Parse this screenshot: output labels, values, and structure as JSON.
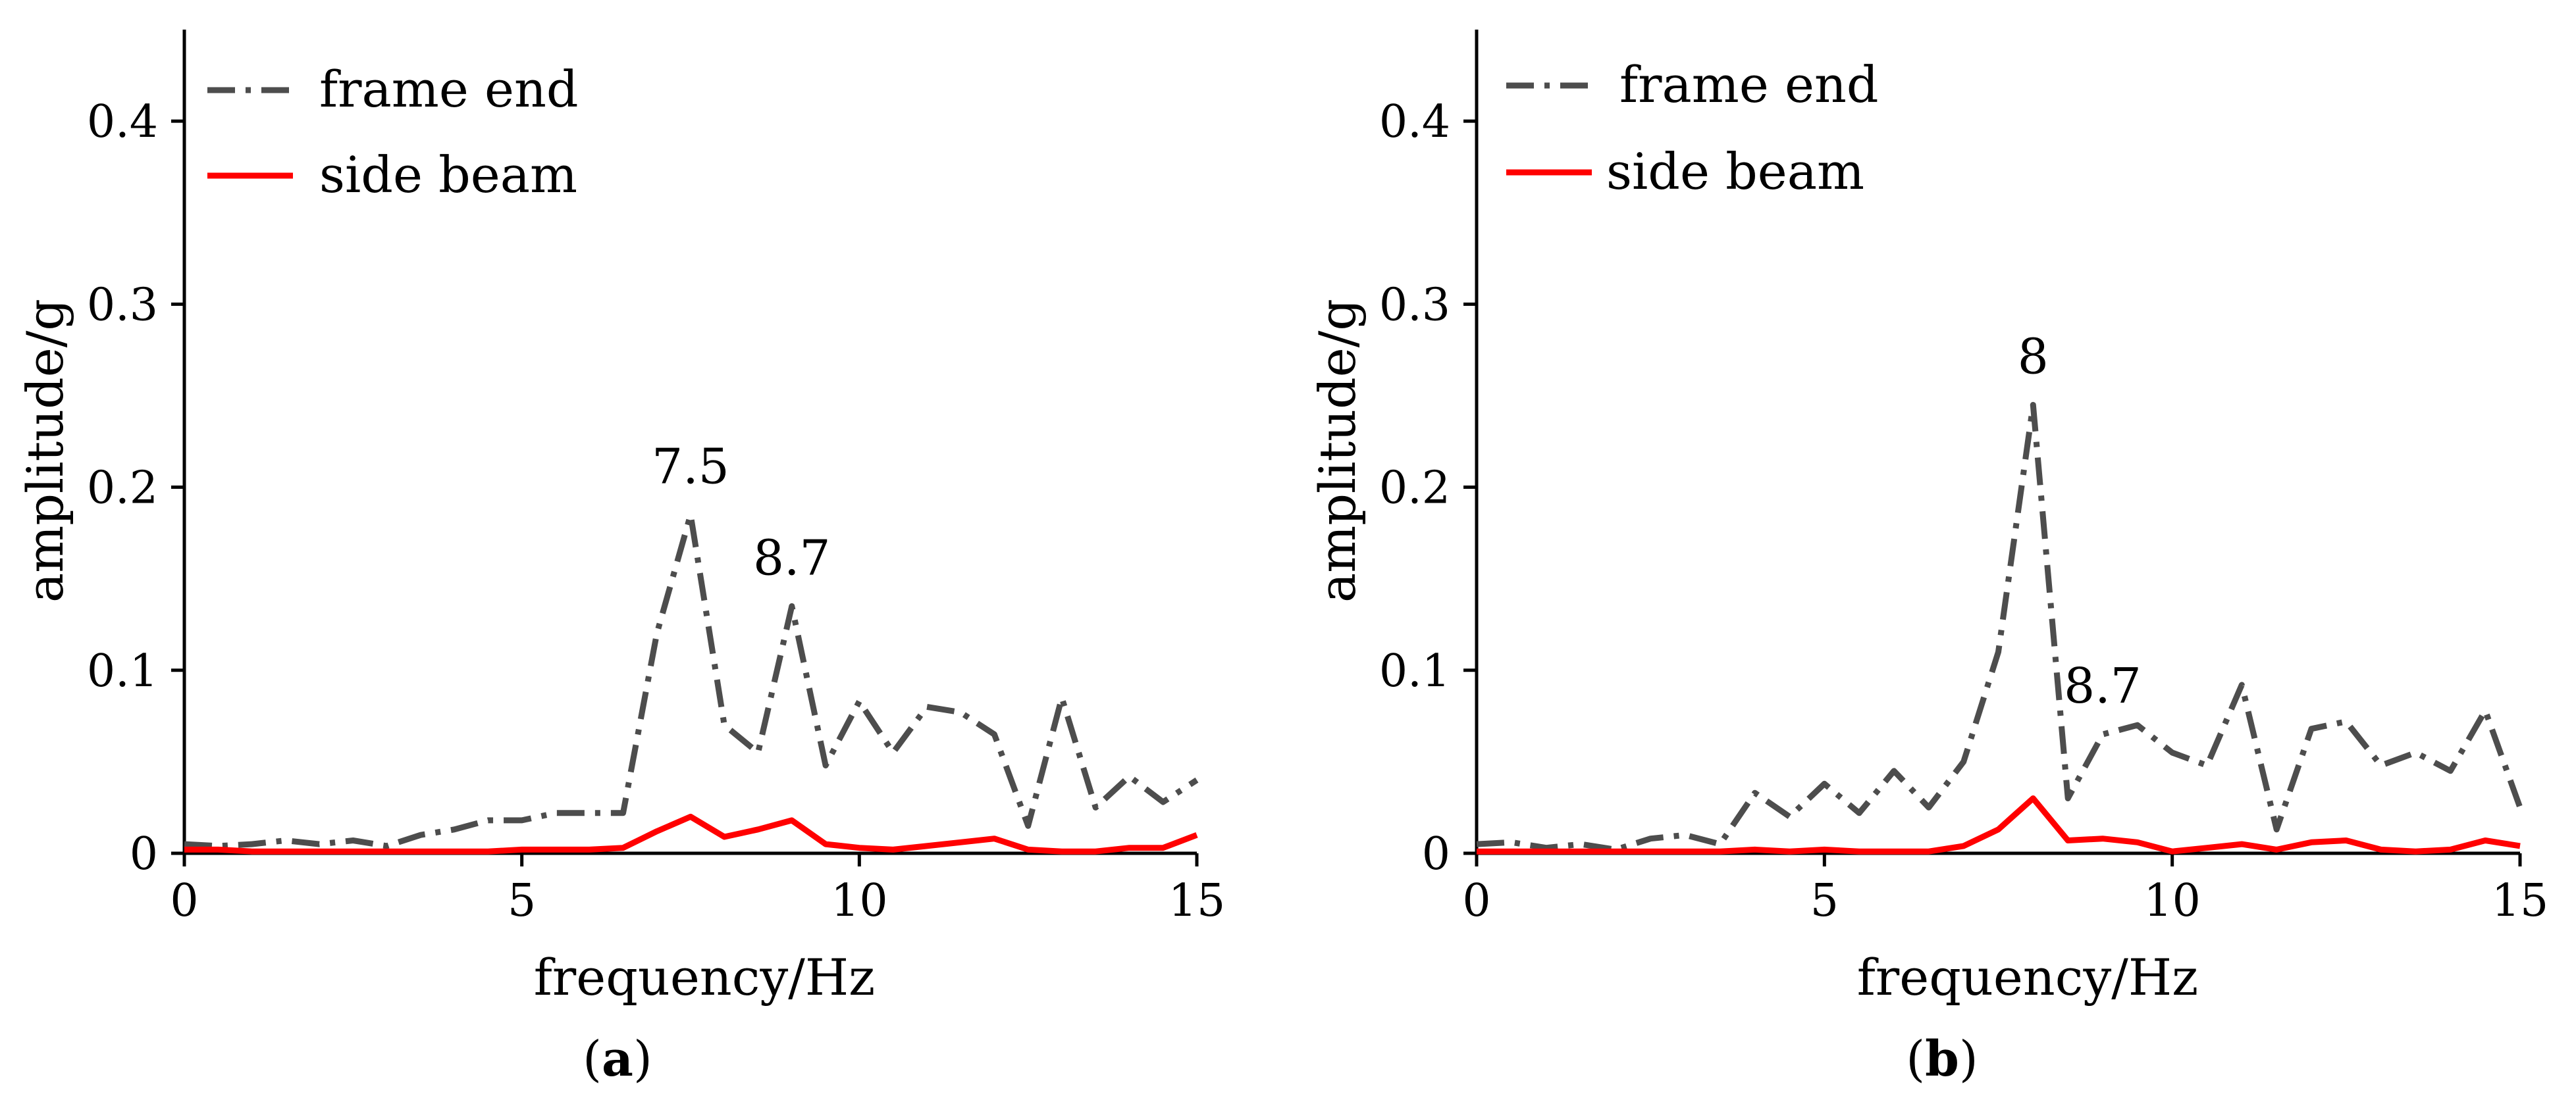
{
  "panels": [
    {
      "caption": "a",
      "chart_data": {
        "type": "line",
        "xlabel": "frequency/Hz",
        "ylabel": "amplitude/g",
        "xlim": [
          0,
          15
        ],
        "ylim": [
          0,
          0.45
        ],
        "xticks": [
          0,
          5,
          10,
          15
        ],
        "yticks": [
          0,
          0.1,
          0.2,
          0.3,
          0.4
        ],
        "xtick_labels": [
          "0",
          "5",
          "10",
          "15"
        ],
        "ytick_labels": [
          "0",
          "0.1",
          "0.2",
          "0.3",
          "0.4"
        ],
        "grid": false,
        "legend": "top-left",
        "x": [
          0,
          0.5,
          1,
          1.5,
          2,
          2.5,
          3,
          3.5,
          4,
          4.5,
          5,
          5.5,
          6,
          6.5,
          7,
          7.5,
          8,
          8.5,
          9,
          9.5,
          10,
          10.5,
          11,
          11.5,
          12,
          12.5,
          13,
          13.5,
          14,
          14.5,
          15
        ],
        "series": [
          {
            "name": "frame end",
            "style": "dash-dot",
            "color": "#4d4d4d",
            "values": [
              0.005,
              0.004,
              0.005,
              0.007,
              0.005,
              0.007,
              0.004,
              0.01,
              0.013,
              0.018,
              0.018,
              0.022,
              0.022,
              0.022,
              0.12,
              0.185,
              0.07,
              0.055,
              0.135,
              0.048,
              0.083,
              0.055,
              0.08,
              0.077,
              0.065,
              0.015,
              0.085,
              0.025,
              0.042,
              0.028,
              0.04
            ]
          },
          {
            "name": "side beam",
            "style": "solid",
            "color": "#ff0000",
            "values": [
              0.002,
              0.002,
              0.001,
              0.001,
              0.001,
              0.001,
              0.001,
              0.001,
              0.001,
              0.001,
              0.002,
              0.002,
              0.002,
              0.003,
              0.012,
              0.02,
              0.009,
              0.013,
              0.018,
              0.005,
              0.003,
              0.002,
              0.004,
              0.006,
              0.008,
              0.002,
              0.001,
              0.001,
              0.003,
              0.003,
              0.01
            ]
          }
        ],
        "annotations": [
          {
            "text": "7.5",
            "x": 7.5,
            "y": 0.185
          },
          {
            "text": "8.7",
            "x": 9.0,
            "y": 0.135
          }
        ]
      }
    },
    {
      "caption": "b",
      "chart_data": {
        "type": "line",
        "xlabel": "frequency/Hz",
        "ylabel": "amplitude/g",
        "xlim": [
          0,
          15
        ],
        "ylim": [
          0,
          0.45
        ],
        "xticks": [
          0,
          5,
          10,
          15
        ],
        "yticks": [
          0,
          0.1,
          0.2,
          0.3,
          0.4
        ],
        "xtick_labels": [
          "0",
          "5",
          "10",
          "15"
        ],
        "ytick_labels": [
          "0",
          "0.1",
          "0.2",
          "0.3",
          "0.4"
        ],
        "grid": false,
        "legend": "top-left",
        "x": [
          0,
          0.5,
          1,
          1.5,
          2,
          2.5,
          3,
          3.5,
          4,
          4.5,
          5,
          5.5,
          6,
          6.5,
          7,
          7.5,
          8,
          8.5,
          9,
          9.5,
          10,
          10.5,
          11,
          11.5,
          12,
          12.5,
          13,
          13.5,
          14,
          14.5,
          15
        ],
        "series": [
          {
            "name": "frame end",
            "style": "dash-dot",
            "color": "#4d4d4d",
            "values": [
              0.005,
              0.006,
              0.003,
              0.005,
              0.002,
              0.008,
              0.01,
              0.005,
              0.033,
              0.02,
              0.038,
              0.022,
              0.045,
              0.025,
              0.05,
              0.11,
              0.245,
              0.03,
              0.065,
              0.07,
              0.055,
              0.048,
              0.092,
              0.013,
              0.068,
              0.072,
              0.048,
              0.055,
              0.045,
              0.078,
              0.025
            ]
          },
          {
            "name": "side beam",
            "style": "solid",
            "color": "#ff0000",
            "values": [
              0.001,
              0.001,
              0.001,
              0.001,
              0.001,
              0.001,
              0.001,
              0.001,
              0.002,
              0.001,
              0.002,
              0.001,
              0.001,
              0.001,
              0.004,
              0.013,
              0.03,
              0.007,
              0.008,
              0.006,
              0.001,
              0.003,
              0.005,
              0.002,
              0.006,
              0.007,
              0.002,
              0.001,
              0.002,
              0.007,
              0.004
            ]
          }
        ],
        "annotations": [
          {
            "text": "8",
            "x": 8.0,
            "y": 0.245
          },
          {
            "text": "8.7",
            "x": 9.0,
            "y": 0.065
          }
        ]
      }
    }
  ]
}
